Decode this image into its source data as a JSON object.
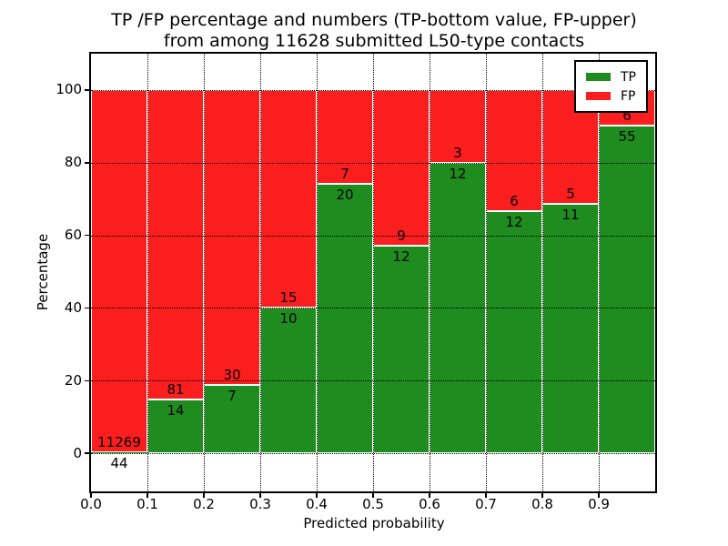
{
  "chart_data": {
    "type": "bar",
    "stacked": true,
    "title": "TP /FP percentage and numbers (TP-bottom value, FP-upper)\nfrom among 11628 submitted L50-type contacts",
    "title_lines": [
      "TP /FP percentage and numbers (TP-bottom value, FP-upper)",
      "from among 11628 submitted L50-type contacts"
    ],
    "total_contacts": 11628,
    "xlabel": "Predicted probability",
    "ylabel": "Percentage",
    "xlim": [
      0.0,
      1.0
    ],
    "ylim": [
      -10.5,
      110
    ],
    "bin_width": 0.1,
    "bin_edges": [
      0.0,
      0.1,
      0.2,
      0.3,
      0.4,
      0.5,
      0.6,
      0.7,
      0.8,
      0.9,
      1.0
    ],
    "categories": [
      "0.0-0.1",
      "0.1-0.2",
      "0.2-0.3",
      "0.3-0.4",
      "0.4-0.5",
      "0.5-0.6",
      "0.6-0.7",
      "0.7-0.8",
      "0.8-0.9",
      "0.9-1.0"
    ],
    "series": [
      {
        "name": "TP",
        "color": "#1e8c1e",
        "counts": [
          44,
          14,
          7,
          10,
          20,
          12,
          12,
          12,
          11,
          55
        ]
      },
      {
        "name": "FP",
        "color": "#fb1e1e",
        "counts": [
          11269,
          81,
          30,
          15,
          7,
          9,
          3,
          6,
          5,
          6
        ]
      }
    ],
    "tp_percent": [
      0.39,
      14.74,
      18.92,
      40.0,
      74.07,
      57.14,
      80.0,
      66.67,
      68.75,
      90.16
    ],
    "fp_percent": [
      99.61,
      85.26,
      81.08,
      60.0,
      25.93,
      42.86,
      20.0,
      33.33,
      31.25,
      9.84
    ],
    "xticks": [
      {
        "v": 0.0,
        "label": "0.0"
      },
      {
        "v": 0.1,
        "label": "0.1"
      },
      {
        "v": 0.2,
        "label": "0.2"
      },
      {
        "v": 0.3,
        "label": "0.3"
      },
      {
        "v": 0.4,
        "label": "0.4"
      },
      {
        "v": 0.5,
        "label": "0.5"
      },
      {
        "v": 0.6,
        "label": "0.6"
      },
      {
        "v": 0.7,
        "label": "0.7"
      },
      {
        "v": 0.8,
        "label": "0.8"
      },
      {
        "v": 0.9,
        "label": "0.9"
      }
    ],
    "yticks": [
      {
        "v": 0,
        "label": "0"
      },
      {
        "v": 20,
        "label": "20"
      },
      {
        "v": 40,
        "label": "40"
      },
      {
        "v": 60,
        "label": "60"
      },
      {
        "v": 80,
        "label": "80"
      },
      {
        "v": 100,
        "label": "100"
      }
    ],
    "grid": true,
    "grid_style": "dotted",
    "bar_edge_color": "#ffffff",
    "legend": {
      "position": "upper right",
      "entries": [
        {
          "name": "TP",
          "color": "#1e8c1e"
        },
        {
          "name": "FP",
          "color": "#fb1e1e"
        }
      ]
    }
  }
}
